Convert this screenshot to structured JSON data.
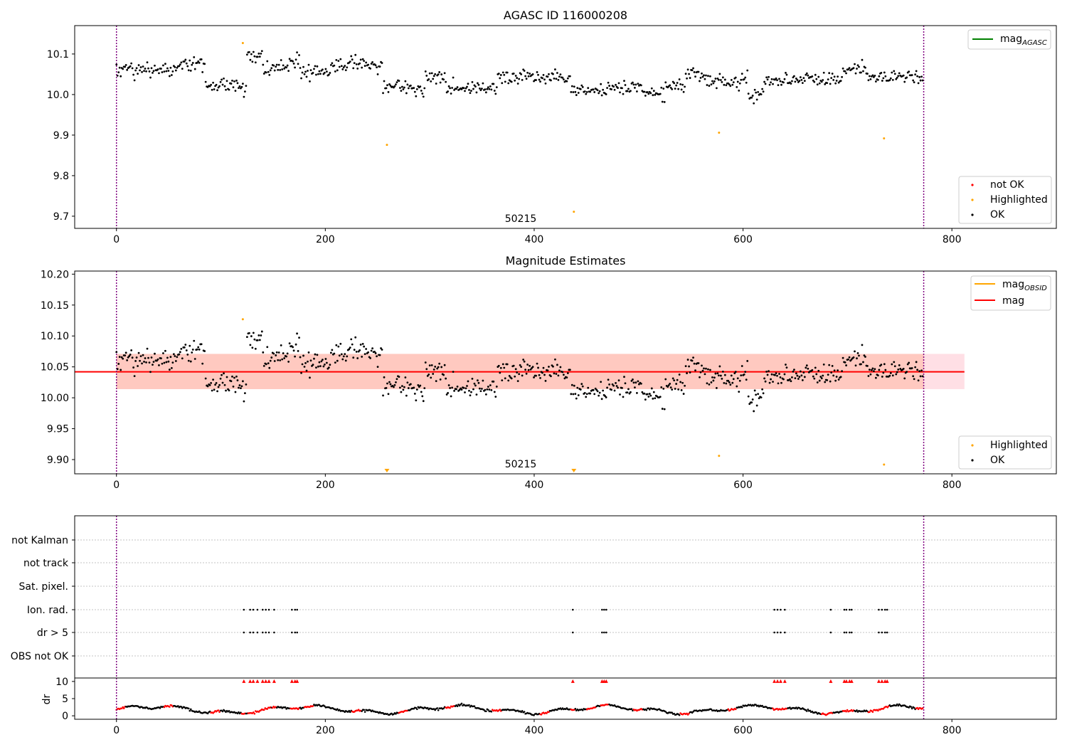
{
  "colors": {
    "ok": "#000000",
    "highlighted": "#ffa500",
    "not_ok": "#ff0000",
    "mag_agasc": "#008000",
    "mag_obsid": "#ffa500",
    "mag": "#ff0000",
    "band_outer": "#ffc0cb",
    "band_inner": "#ffa07a",
    "vline": "#800080",
    "grid": "#b0b0b0"
  },
  "obsid_label": "50215",
  "chart_data": [
    {
      "type": "scatter",
      "title": "AGASC ID 116000208",
      "xlim": [
        -40,
        900
      ],
      "ylim": [
        9.67,
        10.17
      ],
      "xticks": [
        0,
        200,
        400,
        600,
        800
      ],
      "yticks": [
        9.7,
        9.8,
        9.9,
        10.0,
        10.1
      ],
      "ytick_labels": [
        "9.7",
        "9.8",
        "9.9",
        "10.0",
        "10.1"
      ],
      "vlines": [
        0,
        773
      ],
      "annotation": "50215",
      "legend_upper": {
        "position": "upper right",
        "entries": [
          {
            "label": "mag",
            "sub": "AGASC",
            "color": "#008000"
          }
        ]
      },
      "legend_lower": {
        "position": "lower right",
        "entries": [
          {
            "label": "not OK",
            "color": "#ff0000"
          },
          {
            "label": "Highlighted",
            "color": "#ffa500"
          },
          {
            "label": "OK",
            "color": "#000000"
          }
        ]
      },
      "series": [
        {
          "name": "OK",
          "note": "≈760 black points, x 0–773, y ≈ 9.96–10.12",
          "color": "#000000"
        },
        {
          "name": "Highlighted",
          "x": [
            121,
            259,
            438,
            577,
            735
          ],
          "y": [
            10.127,
            9.876,
            9.711,
            9.906,
            9.892
          ],
          "color": "#ffa500"
        }
      ]
    },
    {
      "type": "scatter",
      "title": "Magnitude Estimates",
      "xlim": [
        -40,
        900
      ],
      "ylim": [
        9.877,
        10.205
      ],
      "xticks": [
        0,
        200,
        400,
        600,
        800
      ],
      "yticks": [
        9.9,
        9.95,
        10.0,
        10.05,
        10.1,
        10.15,
        10.2
      ],
      "ytick_labels": [
        "9.90",
        "9.95",
        "10.00",
        "10.05",
        "10.10",
        "10.15",
        "10.20"
      ],
      "vlines": [
        0,
        773
      ],
      "annotation": "50215",
      "mag_line": {
        "y": 10.042,
        "x": [
          -40,
          812
        ]
      },
      "band": {
        "y": [
          10.014,
          10.071
        ],
        "x": [
          0,
          812
        ]
      },
      "legend_upper": {
        "position": "upper right",
        "entries": [
          {
            "label": "mag",
            "sub": "OBSID",
            "color": "#ffa500"
          },
          {
            "label": "mag",
            "color": "#ff0000"
          }
        ]
      },
      "legend_lower": {
        "position": "lower right",
        "entries": [
          {
            "label": "Highlighted",
            "color": "#ffa500"
          },
          {
            "label": "OK",
            "color": "#000000"
          }
        ]
      },
      "series": [
        {
          "name": "OK",
          "color": "#000000"
        },
        {
          "name": "Highlighted",
          "x": [
            121,
            577,
            735
          ],
          "y": [
            10.127,
            9.906,
            9.892
          ],
          "color": "#ffa500"
        },
        {
          "name": "off-scale",
          "x": [
            259,
            438
          ],
          "marker": "triangle-down",
          "color": "#ffa500"
        }
      ]
    },
    {
      "type": "scatter",
      "title": "",
      "xlim": [
        -40,
        900
      ],
      "xticks": [
        0,
        200,
        400,
        600,
        800
      ],
      "vlines": [
        0,
        773
      ],
      "categories": [
        "not Kalman",
        "not track",
        "Sat. pixel.",
        "Ion. rad.",
        "dr > 5",
        "OBS not OK"
      ],
      "flag_x": [
        122,
        128,
        131,
        135,
        140,
        143,
        146,
        151,
        168,
        171,
        173,
        437,
        465,
        467,
        469,
        630,
        633,
        636,
        640,
        684,
        697,
        699,
        702,
        704,
        730,
        733,
        736,
        738
      ],
      "dr": {
        "ylabel": "dr",
        "yticks": [
          0,
          5,
          10
        ],
        "ytick_labels": [
          "0",
          "5",
          "10"
        ],
        "ylim": [
          -0.8,
          10.8
        ],
        "clip_value": 10,
        "note": "black/red dots, dr mostly 0–4 over x 0–773; red triangles at dr = 10 where dr > 5"
      }
    }
  ]
}
